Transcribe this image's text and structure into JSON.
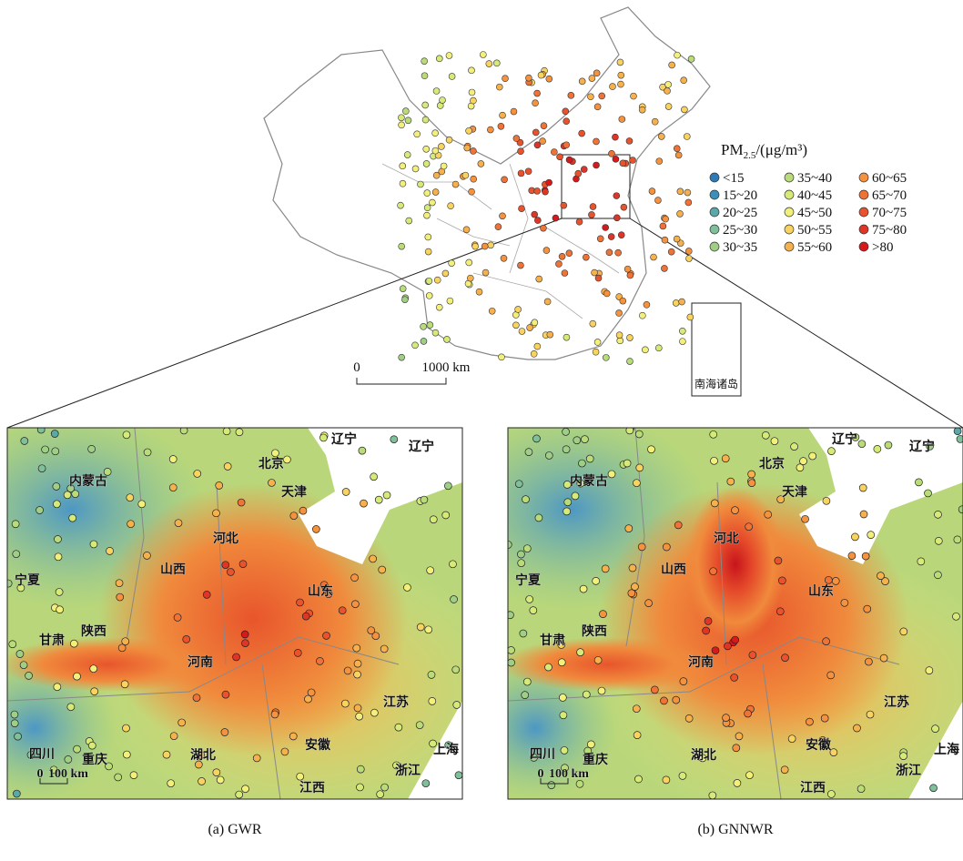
{
  "map": {
    "legend": {
      "title": "PM",
      "subscript": "2.5",
      "unit": "/(μg/m³)",
      "items": [
        {
          "label": "<15",
          "color": "#2c7bb6"
        },
        {
          "label": "15~20",
          "color": "#3a90b8"
        },
        {
          "label": "20~25",
          "color": "#5aa8a8"
        },
        {
          "label": "25~30",
          "color": "#7fbf9a"
        },
        {
          "label": "30~35",
          "color": "#9fcf85"
        },
        {
          "label": "35~40",
          "color": "#b9dc78"
        },
        {
          "label": "40~45",
          "color": "#d6ea78"
        },
        {
          "label": "45~50",
          "color": "#f2ef7a"
        },
        {
          "label": "50~55",
          "color": "#f9d35f"
        },
        {
          "label": "55~60",
          "color": "#f7b14c"
        },
        {
          "label": "60~65",
          "color": "#f4923f"
        },
        {
          "label": "65~70",
          "color": "#ef7236"
        },
        {
          "label": "70~75",
          "color": "#e8532d"
        },
        {
          "label": "75~80",
          "color": "#de3526"
        },
        {
          "label": ">80",
          "color": "#d7191c"
        }
      ]
    },
    "scale_bar": {
      "start": "0",
      "end": "1000 km"
    },
    "inset_label": "南海诸岛"
  },
  "panels": [
    {
      "caption": "(a) GWR",
      "labels": [
        "辽宁",
        "辽宁",
        "内蒙古",
        "北京",
        "天津",
        "河北",
        "山西",
        "宁夏",
        "山东",
        "甘肃",
        "陕西",
        "河南",
        "江苏",
        "安徽",
        "上海",
        "四川",
        "重庆",
        "湖北",
        "浙江",
        "江西"
      ],
      "scale_bar": {
        "start": "0",
        "end": "100 km"
      }
    },
    {
      "caption": "(b) GNNWR",
      "labels": [
        "辽宁",
        "辽宁",
        "内蒙古",
        "北京",
        "天津",
        "河北",
        "山西",
        "宁夏",
        "山东",
        "甘肃",
        "陕西",
        "河南",
        "江苏",
        "安徽",
        "上海",
        "四川",
        "重庆",
        "湖北",
        "浙江",
        "江西"
      ],
      "scale_bar": {
        "start": "0",
        "end": "100 km"
      }
    }
  ]
}
